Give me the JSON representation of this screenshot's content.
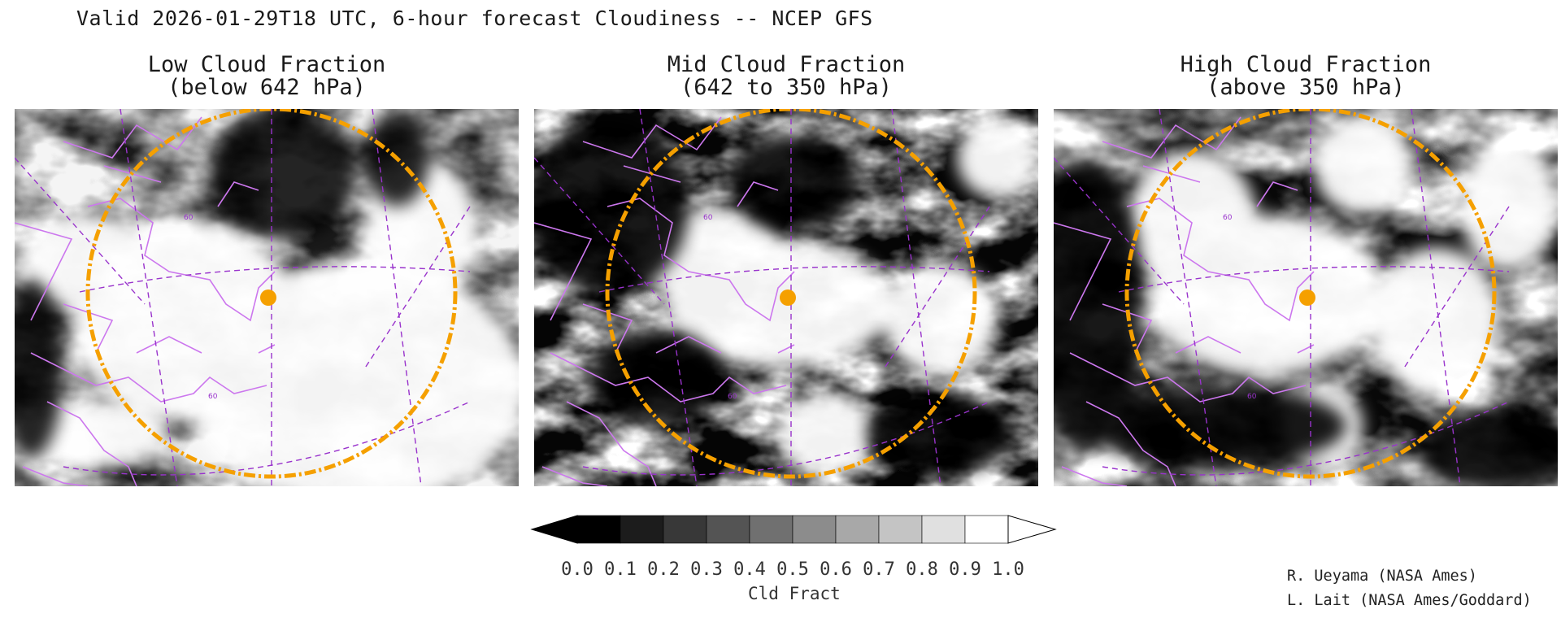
{
  "figure": {
    "title": "Valid 2026-01-29T18 UTC, 6-hour forecast Cloudiness -- NCEP GFS"
  },
  "panels": [
    {
      "title_line1": "Low Cloud Fraction",
      "title_line2": "(below 642 hPa)",
      "lat_label": "60",
      "lat_label_2": "60"
    },
    {
      "title_line1": "Mid Cloud Fraction",
      "title_line2": "(642 to 350 hPa)",
      "lat_label": "60",
      "lat_label_2": "60"
    },
    {
      "title_line1": "High Cloud Fraction",
      "title_line2": "(above 350 hPa)",
      "lat_label": "60",
      "lat_label_2": "60"
    }
  ],
  "colorbar": {
    "label": "Cld Fract",
    "ticks": [
      "0.0",
      "0.1",
      "0.2",
      "0.3",
      "0.4",
      "0.5",
      "0.6",
      "0.7",
      "0.8",
      "0.9",
      "1.0"
    ],
    "colors": [
      "#000000",
      "#1c1c1c",
      "#383838",
      "#545454",
      "#707070",
      "#8c8c8c",
      "#a8a8a8",
      "#c4c4c4",
      "#e0e0e0",
      "#ffffff"
    ],
    "under_color": "#000000",
    "over_color": "#ffffff"
  },
  "credits": {
    "line1": "R. Ueyama (NASA Ames)",
    "line2": "L. Lait (NASA Ames/Goddard)"
  },
  "colors": {
    "coastline": "#cc77ee",
    "range_ring": "#f5a000",
    "site_marker": "#f5a000",
    "graticule": "#9933cc"
  },
  "icons": {
    "site": "orange-dot-icon"
  }
}
